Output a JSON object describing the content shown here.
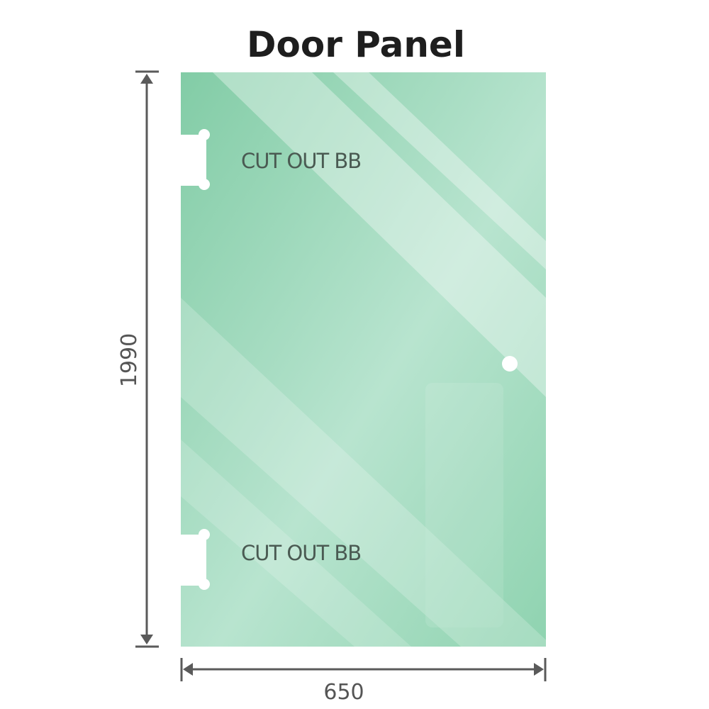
{
  "title": "Door Panel",
  "cutouts": [
    {
      "label": "CUT OUT BB"
    },
    {
      "label": "CUT OUT BB"
    }
  ],
  "dimensions": {
    "height": "1990",
    "width": "650"
  },
  "colors": {
    "glass": "#8fd3b0",
    "glass_light": "#bfe6d3",
    "dimension_line": "#5a5a5a",
    "text": "#4a5a52"
  }
}
